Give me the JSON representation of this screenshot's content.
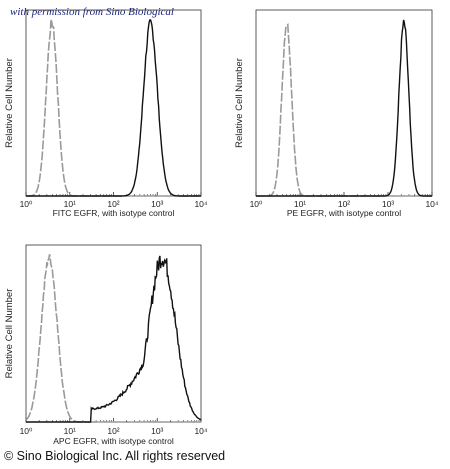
{
  "watermark": "with permission from Sino Biological",
  "copyright": "© Sino Biological Inc. All rights reserved",
  "chart_data": [
    {
      "type": "line",
      "title": "",
      "xlabel": "FITC EGFR,  with isotype control",
      "ylabel": "Relative Cell Number",
      "x_scale": "log",
      "xlim": [
        1,
        10000
      ],
      "x_tick_labels": [
        "10⁰",
        "10¹",
        "10²",
        "10³",
        "10⁴"
      ],
      "series": [
        {
          "style": "gray-dashed",
          "peak_x": 3.9,
          "width_decades": 0.13
        },
        {
          "style": "black-solid",
          "peak_x": 700,
          "width_decades": 0.16
        }
      ]
    },
    {
      "type": "line",
      "title": "",
      "xlabel": "PE EGFR,  with isotype control",
      "ylabel": "Relative Cell Number",
      "x_scale": "log",
      "xlim": [
        1,
        10000
      ],
      "x_tick_labels": [
        "10⁰",
        "10¹",
        "10²",
        "10³",
        "10⁴"
      ],
      "series": [
        {
          "style": "gray-dashed",
          "peak_x": 5.0,
          "width_decades": 0.11
        },
        {
          "style": "black-solid",
          "peak_x": 2300,
          "width_decades": 0.11
        }
      ]
    },
    {
      "type": "line",
      "title": "",
      "xlabel": "APC EGFR, with isotype control",
      "ylabel": "Relative Cell Number",
      "x_scale": "log",
      "xlim": [
        1,
        10000
      ],
      "x_tick_labels": [
        "10⁰",
        "10¹",
        "10²",
        "10³",
        "10⁴"
      ],
      "series": [
        {
          "style": "gray-dashed",
          "peak_x": 3.4,
          "width_decades": 0.18
        },
        {
          "style": "black-solid",
          "peak_x": 1300,
          "width_decades": 0.3,
          "left_tail_to": 30
        }
      ]
    }
  ]
}
